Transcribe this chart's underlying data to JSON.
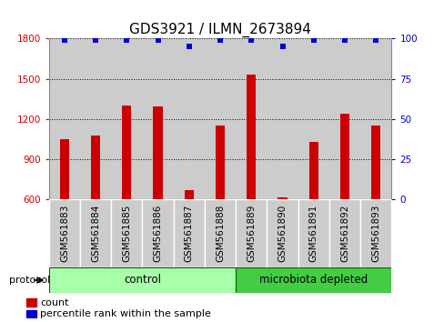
{
  "title": "GDS3921 / ILMN_2673894",
  "samples": [
    "GSM561883",
    "GSM561884",
    "GSM561885",
    "GSM561886",
    "GSM561887",
    "GSM561888",
    "GSM561889",
    "GSM561890",
    "GSM561891",
    "GSM561892",
    "GSM561893"
  ],
  "counts": [
    1050,
    1080,
    1300,
    1295,
    670,
    1150,
    1530,
    615,
    1030,
    1240,
    1150
  ],
  "percentile_ranks": [
    99,
    99,
    99,
    99,
    95,
    99,
    99,
    95,
    99,
    99,
    99
  ],
  "bar_color": "#cc0000",
  "dot_color": "#0000cc",
  "ylim_left": [
    600,
    1800
  ],
  "ylim_right": [
    0,
    100
  ],
  "yticks_left": [
    600,
    900,
    1200,
    1500,
    1800
  ],
  "yticks_right": [
    0,
    25,
    50,
    75,
    100
  ],
  "groups": [
    {
      "label": "control",
      "start": 0,
      "end": 5,
      "color": "#aaffaa"
    },
    {
      "label": "microbiota depleted",
      "start": 6,
      "end": 10,
      "color": "#44cc44"
    }
  ],
  "col_bg_color": "#cccccc",
  "plot_bg_color": "#ffffff",
  "bg_color": "#ffffff",
  "grid_color": "#000000",
  "title_fontsize": 11,
  "tick_label_fontsize": 7.5,
  "legend_count_label": "count",
  "legend_pct_label": "percentile rank within the sample",
  "protocol_label": "protocol"
}
